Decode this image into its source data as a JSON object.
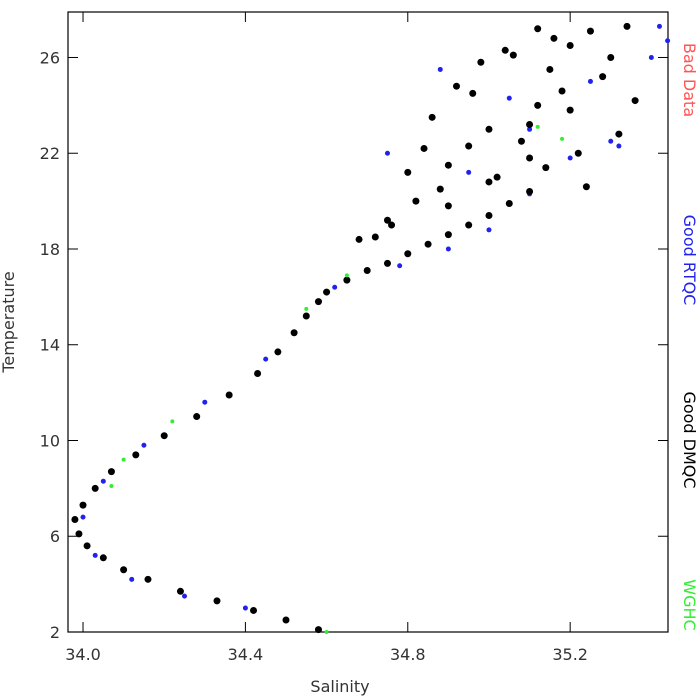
{
  "chart_data": {
    "type": "scatter",
    "xlabel": "Salinity",
    "ylabel": "Temperature",
    "xlim": [
      33.963,
      35.441
    ],
    "ylim": [
      2,
      27.9
    ],
    "xticks": [
      {
        "value": 34.0,
        "label": "34.0"
      },
      34.4,
      34.8,
      35.2
    ],
    "yticks": [
      2,
      6,
      10,
      14,
      18,
      22,
      26
    ],
    "series": [
      {
        "name": "Bad Data",
        "color": "#ff5555",
        "x": [],
        "values": []
      },
      {
        "name": "Good RTQC",
        "color": "#2222ee",
        "radius": 2.5,
        "x": [
          34.4,
          34.25,
          34.12,
          34.03,
          34.0,
          34.05,
          34.15,
          34.3,
          34.45,
          34.62,
          34.78,
          34.9,
          35.0,
          35.1,
          35.2,
          35.3,
          35.4,
          34.75,
          34.88,
          35.05,
          35.25,
          35.44,
          35.42,
          35.32,
          35.1,
          34.95
        ],
        "values": [
          3.0,
          3.5,
          4.2,
          5.2,
          6.8,
          8.3,
          9.8,
          11.6,
          13.4,
          16.4,
          17.3,
          18.0,
          18.8,
          20.3,
          21.8,
          22.5,
          26.0,
          22.0,
          25.5,
          24.3,
          25.0,
          26.7,
          27.3,
          22.3,
          23.0,
          21.2
        ]
      },
      {
        "name": "Good DMQC",
        "color": "#000000",
        "radius": 3.5,
        "x": [
          34.58,
          34.5,
          34.42,
          34.33,
          34.24,
          34.16,
          34.1,
          34.05,
          34.01,
          33.99,
          33.98,
          34.0,
          34.03,
          34.07,
          34.13,
          34.2,
          34.28,
          34.36,
          34.43,
          34.48,
          34.52,
          34.55,
          34.58,
          34.6,
          34.65,
          34.7,
          34.75,
          34.8,
          34.85,
          34.9,
          34.95,
          35.0,
          35.05,
          35.1,
          34.75,
          34.82,
          34.88,
          34.9,
          34.95,
          35.0,
          35.02,
          35.08,
          35.12,
          35.15,
          35.2,
          35.25,
          35.3,
          34.72,
          34.8,
          34.86,
          34.92,
          34.98,
          35.04,
          35.1,
          35.18,
          35.22,
          35.28,
          35.34,
          34.9,
          35.0,
          35.1,
          35.2,
          35.16,
          35.24,
          35.32,
          34.68,
          34.76,
          34.84,
          35.06,
          35.14,
          35.36,
          35.12,
          34.96
        ],
        "values": [
          2.1,
          2.5,
          2.9,
          3.3,
          3.7,
          4.2,
          4.6,
          5.1,
          5.6,
          6.1,
          6.7,
          7.3,
          8.0,
          8.7,
          9.4,
          10.2,
          11.0,
          11.9,
          12.8,
          13.7,
          14.5,
          15.2,
          15.8,
          16.2,
          16.7,
          17.1,
          17.4,
          17.8,
          18.2,
          18.6,
          19.0,
          19.4,
          19.9,
          20.4,
          19.2,
          20.0,
          20.5,
          21.5,
          22.3,
          23.0,
          21.0,
          22.5,
          24.0,
          25.5,
          26.5,
          27.1,
          26.0,
          18.5,
          21.2,
          23.5,
          24.8,
          25.8,
          26.3,
          23.2,
          24.6,
          22.0,
          25.2,
          27.3,
          19.8,
          20.8,
          21.8,
          23.8,
          26.8,
          20.6,
          22.8,
          18.4,
          19.0,
          22.2,
          26.1,
          21.4,
          24.2,
          27.2,
          24.5
        ]
      },
      {
        "name": "WGHC",
        "color": "#33ee33",
        "radius": 2,
        "x": [
          34.6,
          34.1,
          34.07,
          34.22,
          34.55,
          35.18,
          35.12,
          34.65
        ],
        "values": [
          2.0,
          9.2,
          8.1,
          10.8,
          15.5,
          22.6,
          23.1,
          16.9
        ]
      }
    ]
  }
}
